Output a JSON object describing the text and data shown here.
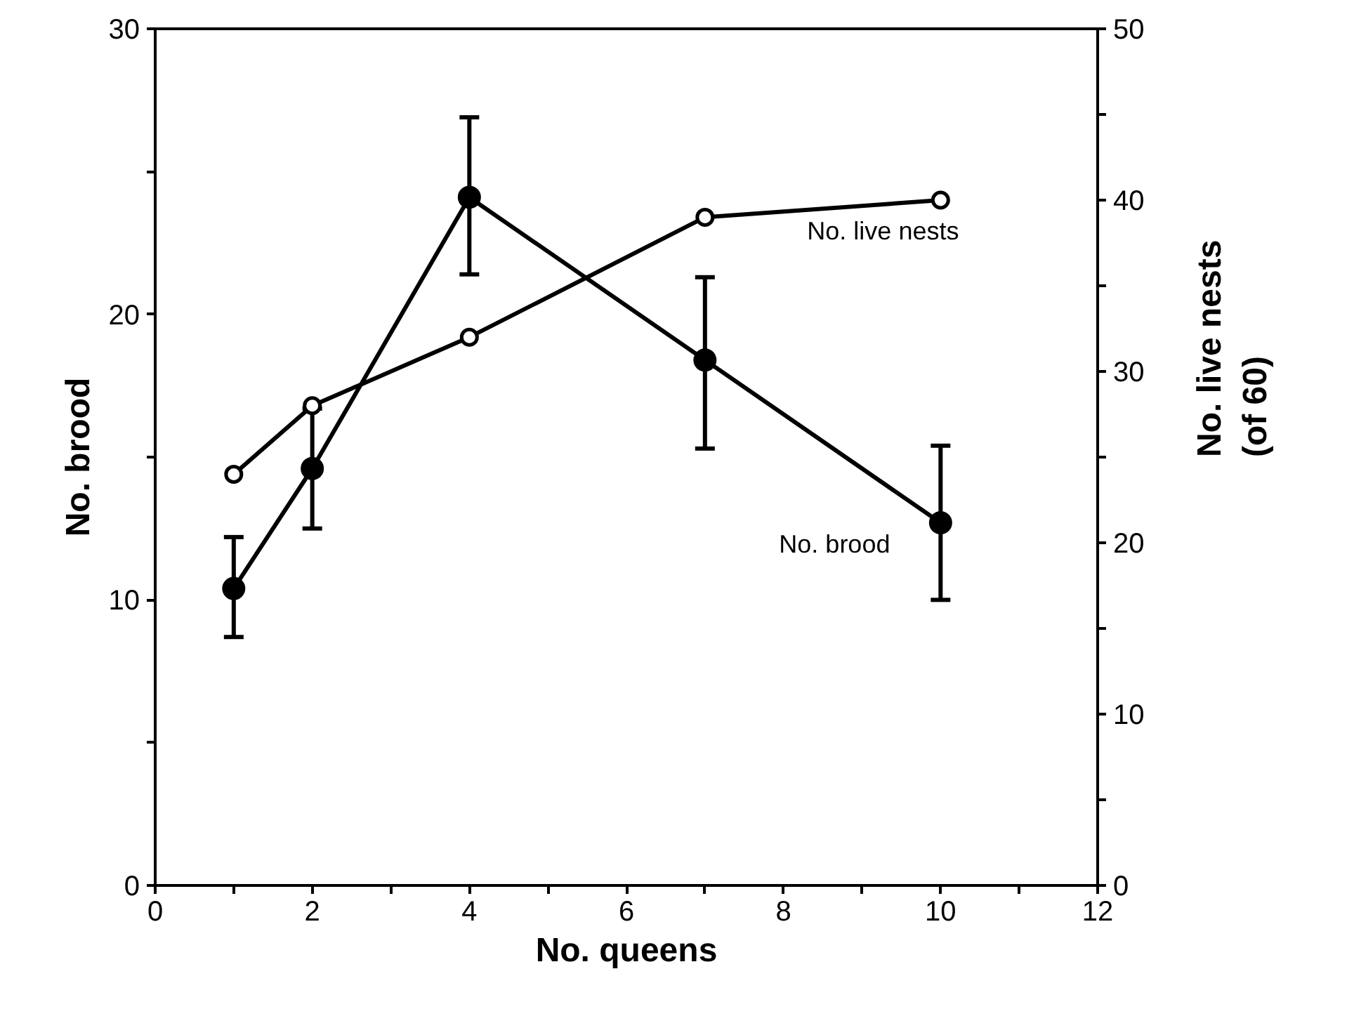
{
  "chart_data": {
    "type": "line",
    "xlabel": "No. queens",
    "ylabel": "No. brood",
    "y2label": "No. live nests\n(of 60)",
    "x": [
      1,
      2,
      4,
      7,
      10
    ],
    "series": [
      {
        "name": "No. brood",
        "color": "#000000",
        "values": [
          10.4,
          14.6,
          24.1,
          18.4,
          12.7
        ],
        "errors": [
          [
            8.7,
            12.2
          ],
          [
            12.5,
            16.7
          ],
          [
            21.4,
            26.9
          ],
          [
            15.3,
            21.3
          ],
          [
            10.0,
            15.4
          ]
        ]
      },
      {
        "name": "No. live nests",
        "color": "#000000",
        "axis": "y2",
        "values": [
          24,
          28,
          32,
          39,
          40
        ]
      }
    ],
    "xlim": [
      0,
      12
    ],
    "xticks": [
      0,
      {
        "value": 1,
        "label": null
      },
      2,
      {
        "value": 3,
        "label": null
      },
      4,
      {
        "value": 5,
        "label": null
      },
      6,
      {
        "value": 7,
        "label": null
      },
      8,
      {
        "value": 9,
        "label": null
      },
      10,
      {
        "value": 11,
        "label": null
      },
      12
    ],
    "ylim": [
      0,
      30
    ],
    "yticks": [
      0,
      {
        "value": 5,
        "label": null
      },
      10,
      {
        "value": 15,
        "label": null
      },
      20,
      {
        "value": 25,
        "label": null
      },
      30
    ],
    "y2lim": [
      0,
      50
    ],
    "y2ticks": [
      0,
      {
        "value": 5,
        "label": null
      },
      10,
      {
        "value": 15,
        "label": null
      },
      20,
      {
        "value": 25,
        "label": null
      },
      30,
      {
        "value": 35,
        "label": null
      },
      40,
      {
        "value": 45,
        "label": null
      },
      50
    ],
    "marker": "circle",
    "line_style": "solid",
    "grid": false
  }
}
